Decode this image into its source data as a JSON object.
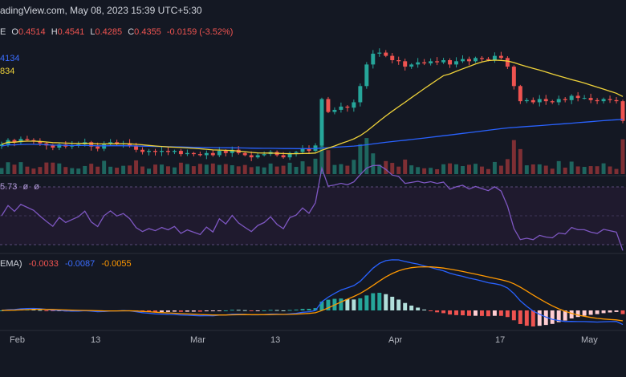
{
  "header": {
    "source_line": "adingView.com, May 08, 2023 15:39 UTC+5:30"
  },
  "ohlc": {
    "prefix": "E",
    "o_label": "O",
    "o_value": "0.4514",
    "h_label": "H",
    "h_value": "0.4541",
    "l_label": "L",
    "l_value": "0.4285",
    "c_label": "C",
    "c_value": "0.4355",
    "change": "-0.0159 (-3.52%)"
  },
  "ma_values": {
    "ma_blue": "4134",
    "ma_yellow": "834"
  },
  "rsi": {
    "label": "5.73",
    "sym1": "ø",
    "sym2": "ø"
  },
  "macd": {
    "label": "EMA)",
    "hist_value": "-0.0033",
    "macd_value": "-0.0087",
    "signal_value": "-0.0055"
  },
  "x_axis": [
    "Feb",
    "13",
    "Mar",
    "13",
    "Apr",
    "17",
    "May"
  ],
  "colors": {
    "background": "#141823",
    "up": "#26a69a",
    "down": "#ef5350",
    "ma_yellow": "#f0d33a",
    "ma_blue": "#2962ff",
    "rsi_line": "#7e57c2",
    "macd_line": "#2962ff",
    "signal_line": "#ff9800"
  },
  "chart_data": {
    "type": "candlestick",
    "x": [
      "2023-01-31",
      "2023-02-01",
      "2023-02-02",
      "2023-02-03",
      "2023-02-04",
      "2023-02-05",
      "2023-02-06",
      "2023-02-07",
      "2023-02-08",
      "2023-02-09",
      "2023-02-10",
      "2023-02-11",
      "2023-02-12",
      "2023-02-13",
      "2023-02-14",
      "2023-02-15",
      "2023-02-16",
      "2023-02-17",
      "2023-02-18",
      "2023-02-19",
      "2023-02-20",
      "2023-02-21",
      "2023-02-22",
      "2023-02-23",
      "2023-02-24",
      "2023-02-25",
      "2023-02-26",
      "2023-02-27",
      "2023-02-28",
      "2023-03-01",
      "2023-03-02",
      "2023-03-03",
      "2023-03-04",
      "2023-03-05",
      "2023-03-06",
      "2023-03-07",
      "2023-03-08",
      "2023-03-09",
      "2023-03-10",
      "2023-03-11",
      "2023-03-12",
      "2023-03-13",
      "2023-03-14",
      "2023-03-15",
      "2023-03-16",
      "2023-03-17",
      "2023-03-18",
      "2023-03-19",
      "2023-03-20",
      "2023-03-21",
      "2023-03-22",
      "2023-03-23",
      "2023-03-24",
      "2023-03-25",
      "2023-03-26",
      "2023-03-27",
      "2023-03-28",
      "2023-03-29",
      "2023-03-30",
      "2023-03-31",
      "2023-04-01",
      "2023-04-02",
      "2023-04-03",
      "2023-04-04",
      "2023-04-05",
      "2023-04-06",
      "2023-04-07",
      "2023-04-08",
      "2023-04-09",
      "2023-04-10",
      "2023-04-11",
      "2023-04-12",
      "2023-04-13",
      "2023-04-14",
      "2023-04-15",
      "2023-04-16",
      "2023-04-17",
      "2023-04-18",
      "2023-04-19",
      "2023-04-20",
      "2023-04-21",
      "2023-04-22",
      "2023-04-23",
      "2023-04-24",
      "2023-04-25",
      "2023-04-26",
      "2023-04-27",
      "2023-04-28",
      "2023-04-29",
      "2023-04-30",
      "2023-05-01",
      "2023-05-02",
      "2023-05-03",
      "2023-05-04",
      "2023-05-05",
      "2023-05-06",
      "2023-05-07",
      "2023-05-08"
    ],
    "close_estimates": [
      0.392,
      0.4,
      0.396,
      0.402,
      0.4,
      0.398,
      0.394,
      0.39,
      0.386,
      0.392,
      0.388,
      0.39,
      0.392,
      0.396,
      0.388,
      0.384,
      0.392,
      0.396,
      0.392,
      0.394,
      0.39,
      0.382,
      0.378,
      0.38,
      0.378,
      0.38,
      0.378,
      0.38,
      0.374,
      0.376,
      0.374,
      0.372,
      0.376,
      0.372,
      0.38,
      0.376,
      0.382,
      0.376,
      0.372,
      0.368,
      0.372,
      0.374,
      0.378,
      0.372,
      0.368,
      0.376,
      0.378,
      0.384,
      0.38,
      0.39,
      0.476,
      0.452,
      0.456,
      0.462,
      0.46,
      0.47,
      0.5,
      0.54,
      0.56,
      0.562,
      0.556,
      0.548,
      0.546,
      0.536,
      0.54,
      0.544,
      0.542,
      0.546,
      0.544,
      0.548,
      0.54,
      0.546,
      0.55,
      0.546,
      0.552,
      0.55,
      0.548,
      0.556,
      0.552,
      0.536,
      0.5,
      0.472,
      0.474,
      0.47,
      0.476,
      0.472,
      0.47,
      0.476,
      0.474,
      0.482,
      0.478,
      0.478,
      0.474,
      0.472,
      0.476,
      0.474,
      0.472,
      0.4355
    ],
    "ylim": [
      0.34,
      0.6
    ]
  }
}
